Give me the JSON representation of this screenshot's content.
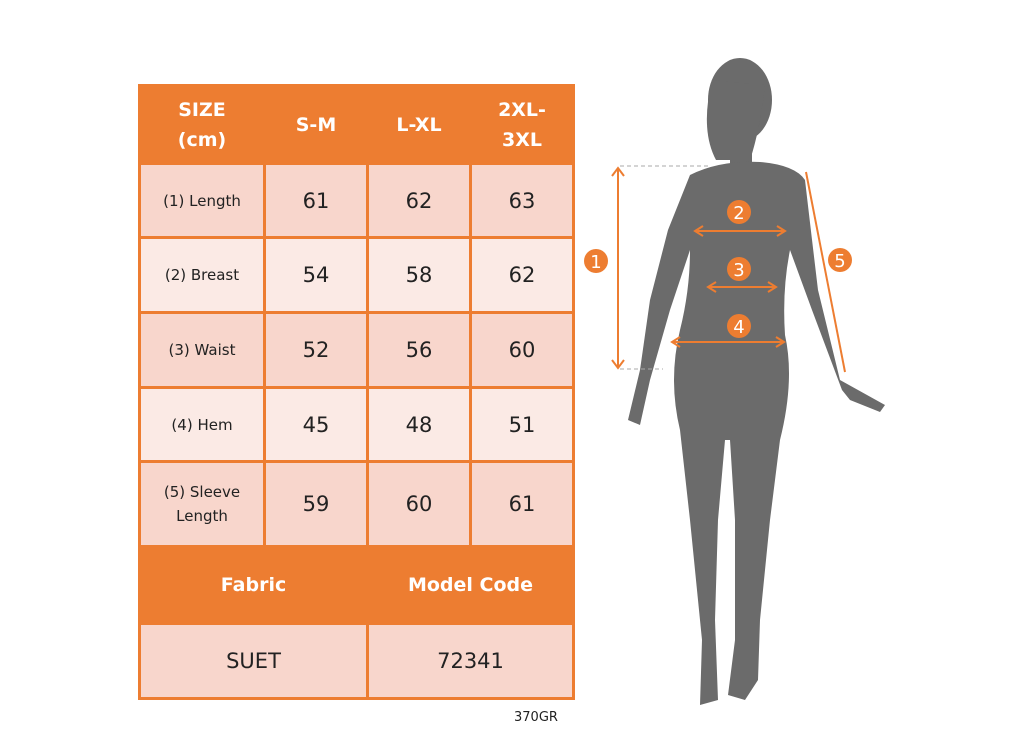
{
  "table": {
    "headers": [
      "SIZE (cm)",
      "S-M",
      "L-XL",
      "2XL-3XL"
    ],
    "rows": [
      {
        "label": "(1) Length",
        "values": [
          "61",
          "62",
          "63"
        ]
      },
      {
        "label": "(2) Breast",
        "values": [
          "54",
          "58",
          "62"
        ]
      },
      {
        "label": "(3) Waist",
        "values": [
          "52",
          "56",
          "60"
        ]
      },
      {
        "label": "(4) Hem",
        "values": [
          "45",
          "48",
          "51"
        ]
      },
      {
        "label": "(5) Sleeve Length",
        "values": [
          "59",
          "60",
          "61"
        ]
      }
    ],
    "footer_headers": [
      "Fabric",
      "Model Code"
    ],
    "footer_values": [
      "SUET",
      "72341"
    ]
  },
  "fabric_weight": "370GR",
  "figure": {
    "markers": [
      "1",
      "2",
      "3",
      "4",
      "5"
    ]
  },
  "colors": {
    "accent": "#ed7d31",
    "row_dark": "#f8d6cc",
    "row_light": "#fbeae5",
    "silhouette": "#6b6b6b"
  }
}
